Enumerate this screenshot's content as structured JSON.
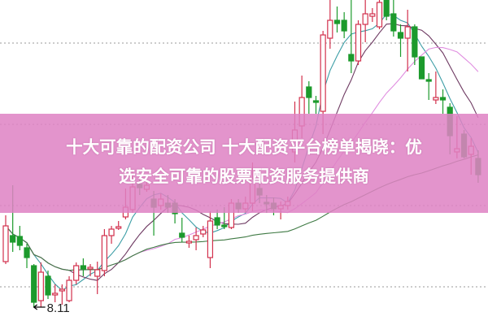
{
  "banner": {
    "line1": "十大可靠的配资公司 十大配资平台榜单揭晓：优",
    "line2": "选安全可靠的股票配资服务提供商",
    "color": "#de82c4"
  },
  "chart_data": {
    "type": "candlestick",
    "title": "",
    "grid": "horizontal dotted",
    "colors": {
      "up": "#d2304c",
      "down": "#1c9a2c",
      "ma5": "#3d9ea6",
      "ma10": "#6e3a62",
      "ma20": "#e08ee0",
      "ma60": "#3f7a44"
    },
    "moving_averages": [
      5,
      10,
      20,
      60
    ],
    "ylim": [
      7.89,
      11.89
    ],
    "annotation": {
      "label": "8.11",
      "value": 8.11
    },
    "ohlc": [
      [
        8.67,
        9.24,
        8.64,
        9.11
      ],
      [
        8.99,
        9.61,
        8.79,
        8.91
      ],
      [
        8.98,
        9.11,
        8.81,
        8.87
      ],
      [
        8.84,
        8.89,
        8.59,
        8.72
      ],
      [
        8.62,
        8.64,
        8.11,
        8.17
      ],
      [
        8.19,
        8.66,
        8.11,
        8.54
      ],
      [
        8.49,
        8.56,
        8.21,
        8.26
      ],
      [
        8.26,
        8.39,
        8.17,
        8.28
      ],
      [
        8.31,
        8.39,
        8.14,
        8.33
      ],
      [
        8.19,
        8.49,
        8.17,
        8.44
      ],
      [
        8.44,
        8.66,
        8.39,
        8.62
      ],
      [
        8.62,
        8.71,
        8.49,
        8.58
      ],
      [
        8.58,
        8.64,
        8.49,
        8.6
      ],
      [
        8.49,
        8.67,
        8.27,
        8.57
      ],
      [
        8.56,
        9.07,
        8.49,
        8.99
      ],
      [
        8.99,
        9.11,
        8.89,
        9.07
      ],
      [
        9.08,
        9.17,
        9.06,
        9.1
      ],
      [
        9.22,
        9.57,
        9.19,
        9.34
      ],
      [
        9.31,
        9.79,
        9.27,
        9.59
      ],
      [
        9.62,
        9.69,
        9.49,
        9.58
      ],
      [
        9.56,
        9.67,
        9.53,
        9.61
      ],
      [
        9.44,
        9.54,
        8.99,
        9.34
      ],
      [
        9.36,
        9.51,
        9.31,
        9.44
      ],
      [
        9.39,
        9.49,
        9.27,
        9.34
      ],
      [
        9.39,
        9.44,
        9.14,
        9.26
      ],
      [
        9.02,
        9.21,
        8.91,
        8.97
      ],
      [
        8.9,
        8.99,
        8.84,
        8.92
      ],
      [
        8.94,
        9.09,
        8.81,
        8.99
      ],
      [
        9.01,
        9.11,
        8.97,
        9.06
      ],
      [
        8.72,
        9.29,
        8.59,
        9.17
      ],
      [
        9.21,
        9.31,
        9.07,
        9.12
      ],
      [
        9.12,
        9.34,
        9.07,
        9.1
      ],
      [
        9.09,
        9.44,
        9.07,
        9.39
      ],
      [
        9.39,
        9.44,
        9.27,
        9.32
      ],
      [
        9.32,
        9.47,
        9.27,
        9.39
      ],
      [
        9.39,
        9.89,
        9.29,
        9.69
      ],
      [
        9.57,
        9.64,
        9.39,
        9.49
      ],
      [
        9.4,
        9.49,
        9.27,
        9.38
      ],
      [
        9.39,
        9.46,
        9.24,
        9.32
      ],
      [
        9.32,
        9.41,
        9.19,
        9.36
      ],
      [
        9.36,
        9.47,
        9.31,
        9.41
      ],
      [
        10.02,
        10.64,
        9.89,
        10.29
      ],
      [
        10.34,
        10.96,
        10.19,
        10.69
      ],
      [
        10.82,
        10.89,
        10.49,
        10.69
      ],
      [
        10.65,
        10.71,
        10.49,
        10.63
      ],
      [
        10.52,
        11.51,
        10.24,
        11.46
      ],
      [
        11.42,
        11.89,
        11.29,
        11.64
      ],
      [
        11.64,
        11.81,
        11.49,
        11.6
      ],
      [
        11.64,
        11.74,
        11.42,
        11.51
      ],
      [
        11.22,
        11.89,
        10.99,
        11.14
      ],
      [
        11.14,
        11.64,
        11.09,
        11.59
      ],
      [
        11.59,
        11.89,
        11.37,
        11.72
      ],
      [
        11.69,
        11.79,
        11.62,
        11.72
      ],
      [
        11.56,
        11.89,
        11.53,
        11.86
      ],
      [
        11.89,
        11.89,
        11.64,
        11.69
      ],
      [
        11.72,
        11.89,
        11.44,
        11.51
      ],
      [
        11.49,
        11.59,
        11.19,
        11.42
      ],
      [
        11.42,
        11.77,
        11.01,
        11.56
      ],
      [
        11.56,
        11.59,
        11.09,
        11.19
      ],
      [
        11.19,
        11.19,
        10.92,
        10.92
      ],
      [
        10.91,
        10.99,
        10.66,
        10.89
      ],
      [
        10.66,
        11.01,
        10.61,
        10.69
      ],
      [
        10.69,
        10.79,
        10.49,
        10.66
      ],
      [
        10.57,
        10.62,
        9.99,
        10.22
      ],
      [
        10.02,
        10.46,
        9.94,
        10.06
      ],
      [
        10.24,
        10.29,
        9.94,
        9.96
      ],
      [
        9.99,
        10.19,
        9.74,
        10.09
      ],
      [
        9.94,
        10.04,
        9.64,
        9.74
      ]
    ]
  }
}
